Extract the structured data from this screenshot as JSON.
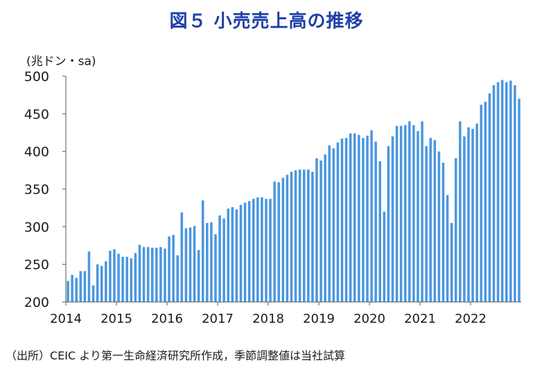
{
  "title": "図５ 小売売上高の推移",
  "unit_label": "(兆ドン・sa)",
  "source": "（出所）CEIC より第一生命経済研究所作成，季節調整値は当社試算",
  "colors": {
    "bar": "#4a97e0",
    "axis": "#555555",
    "title": "#1f3fa8"
  },
  "chart_data": {
    "type": "bar",
    "title": "小売売上高の推移",
    "ylabel": "兆ドン・sa",
    "xlabel": "",
    "ylim": [
      200,
      500
    ],
    "yticks": [
      200,
      250,
      300,
      350,
      400,
      450,
      500
    ],
    "xticks": [
      "2014",
      "2015",
      "2016",
      "2017",
      "2018",
      "2019",
      "2020",
      "2021",
      "2022"
    ],
    "start": "2014-01",
    "frequency": "monthly",
    "values": [
      228,
      236,
      232,
      241,
      241,
      267,
      222,
      250,
      248,
      254,
      268,
      270,
      264,
      260,
      260,
      258,
      265,
      276,
      273,
      273,
      272,
      272,
      273,
      271,
      287,
      289,
      262,
      319,
      298,
      299,
      301,
      269,
      335,
      305,
      306,
      290,
      315,
      311,
      324,
      326,
      323,
      329,
      332,
      334,
      337,
      339,
      339,
      337,
      337,
      360,
      359,
      365,
      369,
      373,
      375,
      376,
      376,
      376,
      373,
      391,
      388,
      396,
      408,
      404,
      412,
      417,
      418,
      424,
      424,
      422,
      418,
      421,
      428,
      413,
      387,
      320,
      407,
      420,
      434,
      434,
      435,
      440,
      435,
      427,
      440,
      407,
      418,
      415,
      400,
      385,
      342,
      305,
      391,
      440,
      420,
      432,
      430,
      437,
      462,
      466,
      477,
      488,
      492,
      495,
      492,
      494,
      488,
      470
    ]
  }
}
